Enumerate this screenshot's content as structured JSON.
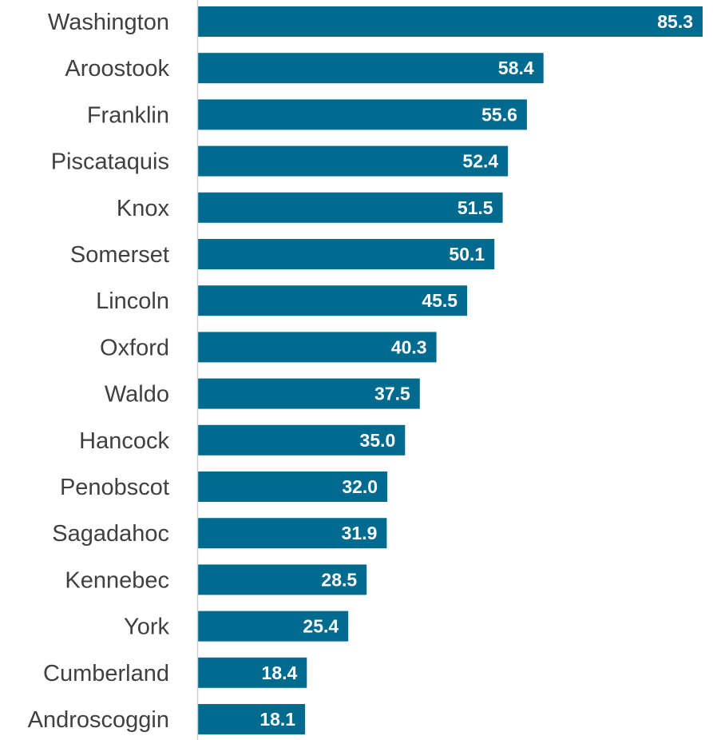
{
  "colors": {
    "bar": "#006b8f",
    "axis": "#d0d0d0",
    "category_text": "#404040",
    "value_text": "#ffffff"
  },
  "chart_data": {
    "type": "bar",
    "orientation": "horizontal",
    "categories": [
      "Washington",
      "Aroostook",
      "Franklin",
      "Piscataquis",
      "Knox",
      "Somerset",
      "Lincoln",
      "Oxford",
      "Waldo",
      "Hancock",
      "Penobscot",
      "Sagadahoc",
      "Kennebec",
      "York",
      "Cumberland",
      "Androscoggin"
    ],
    "values": [
      85.3,
      58.4,
      55.6,
      52.4,
      51.5,
      50.1,
      45.5,
      40.3,
      37.5,
      35.0,
      32.0,
      31.9,
      28.5,
      25.4,
      18.4,
      18.1
    ],
    "value_labels": [
      "85.3",
      "58.4",
      "55.6",
      "52.4",
      "51.5",
      "50.1",
      "45.5",
      "40.3",
      "37.5",
      "35.0",
      "32.0",
      "31.9",
      "28.5",
      "25.4",
      "18.4",
      "18.1"
    ],
    "title": "",
    "xlabel": "",
    "ylabel": "",
    "xlim": [
      0,
      85.3
    ],
    "grid": false,
    "legend": "none",
    "data_labels": "inside-end"
  }
}
